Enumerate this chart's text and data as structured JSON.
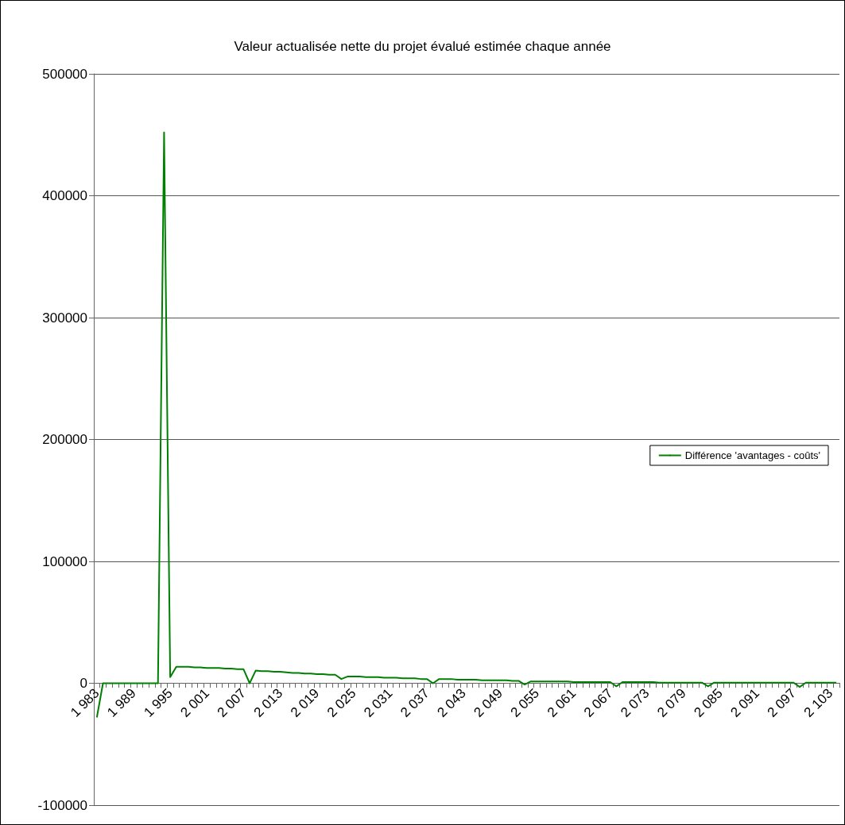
{
  "chart_data": {
    "type": "line",
    "title": "Valeur actualisée nette du projet évalué estimée chaque année",
    "categories": [
      "1 983",
      null,
      null,
      null,
      null,
      null,
      "1 989",
      null,
      null,
      null,
      null,
      null,
      "1 995",
      null,
      null,
      null,
      null,
      null,
      "2 001",
      null,
      null,
      null,
      null,
      null,
      "2 007",
      null,
      null,
      null,
      null,
      null,
      "2 013",
      null,
      null,
      null,
      null,
      null,
      "2 019",
      null,
      null,
      null,
      null,
      null,
      "2 025",
      null,
      null,
      null,
      null,
      null,
      "2 031",
      null,
      null,
      null,
      null,
      null,
      "2 037",
      null,
      null,
      null,
      null,
      null,
      "2 043",
      null,
      null,
      null,
      null,
      null,
      "2 049",
      null,
      null,
      null,
      null,
      null,
      "2 055",
      null,
      null,
      null,
      null,
      null,
      "2 061",
      null,
      null,
      null,
      null,
      null,
      "2 067",
      null,
      null,
      null,
      null,
      null,
      "2 073",
      null,
      null,
      null,
      null,
      null,
      "2 079",
      null,
      null,
      null,
      null,
      null,
      "2 085",
      null,
      null,
      null,
      null,
      null,
      "2 091",
      null,
      null,
      null,
      null,
      null,
      "2 097",
      null,
      null,
      null,
      null,
      null,
      "2 103",
      null
    ],
    "series": [
      {
        "name": "Différence 'avantages - coûts'",
        "color": "#008000",
        "values": [
          -28000,
          0,
          0,
          0,
          0,
          0,
          0,
          0,
          0,
          0,
          0,
          452000,
          5000,
          13500,
          13500,
          13500,
          13000,
          13000,
          12500,
          12500,
          12500,
          12000,
          12000,
          11500,
          11500,
          0,
          10500,
          10000,
          10000,
          9500,
          9500,
          9000,
          8500,
          8500,
          8000,
          8000,
          7500,
          7500,
          7000,
          7000,
          3500,
          5500,
          5500,
          5500,
          5000,
          5000,
          5000,
          4500,
          4500,
          4500,
          4000,
          4000,
          4000,
          3500,
          3500,
          0,
          3500,
          3500,
          3500,
          3000,
          3000,
          3000,
          3000,
          2500,
          2500,
          2500,
          2500,
          2500,
          2000,
          2000,
          -1000,
          1500,
          1500,
          1500,
          1500,
          1500,
          1500,
          1500,
          1000,
          1000,
          1000,
          1000,
          1000,
          1000,
          1000,
          -2500,
          1000,
          1000,
          1000,
          1000,
          1000,
          1000,
          500,
          500,
          500,
          500,
          500,
          500,
          500,
          500,
          -2500,
          500,
          500,
          500,
          500,
          500,
          500,
          500,
          500,
          500,
          500,
          500,
          500,
          500,
          500,
          -3000,
          500,
          500,
          500,
          500,
          500,
          500
        ]
      }
    ],
    "ylim": [
      -100000,
      500000
    ],
    "yticks": [
      {
        "value": -100000,
        "label": "-100000"
      },
      0,
      {
        "value": 100000,
        "label": "100000"
      },
      {
        "value": 200000,
        "label": "200000"
      },
      {
        "value": 300000,
        "label": "300000"
      },
      {
        "value": 400000,
        "label": "400000"
      },
      {
        "value": 500000,
        "label": "500000"
      }
    ],
    "grid": "y",
    "legend": "right",
    "marker": "none",
    "line_style": "solid"
  }
}
